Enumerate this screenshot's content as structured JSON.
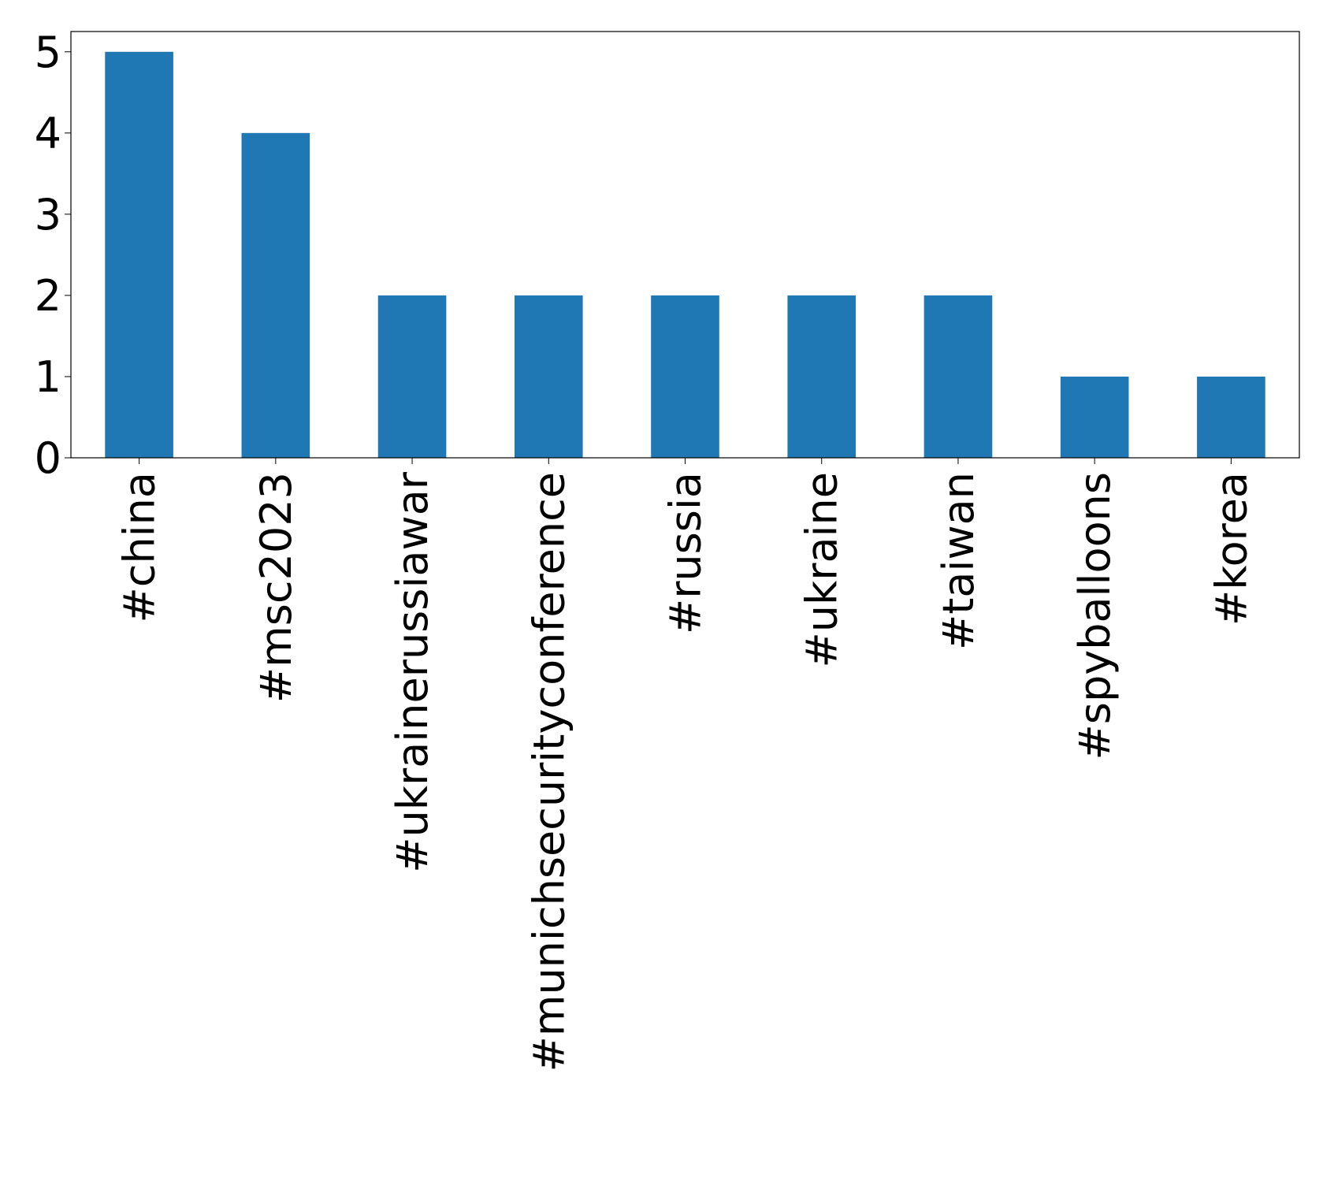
{
  "chart_data": {
    "type": "bar",
    "categories": [
      "#china",
      "#msc2023",
      "#ukrainerussiawar",
      "#munichsecurityconference",
      "#russia",
      "#ukraine",
      "#taiwan",
      "#spyballoons",
      "#korea"
    ],
    "values": [
      5,
      4,
      2,
      2,
      2,
      2,
      2,
      1,
      1
    ],
    "color": "#1f77b4",
    "ylim": [
      0,
      5.25
    ],
    "yticks": [
      0,
      1,
      2,
      3,
      4,
      5
    ],
    "grid": false
  }
}
